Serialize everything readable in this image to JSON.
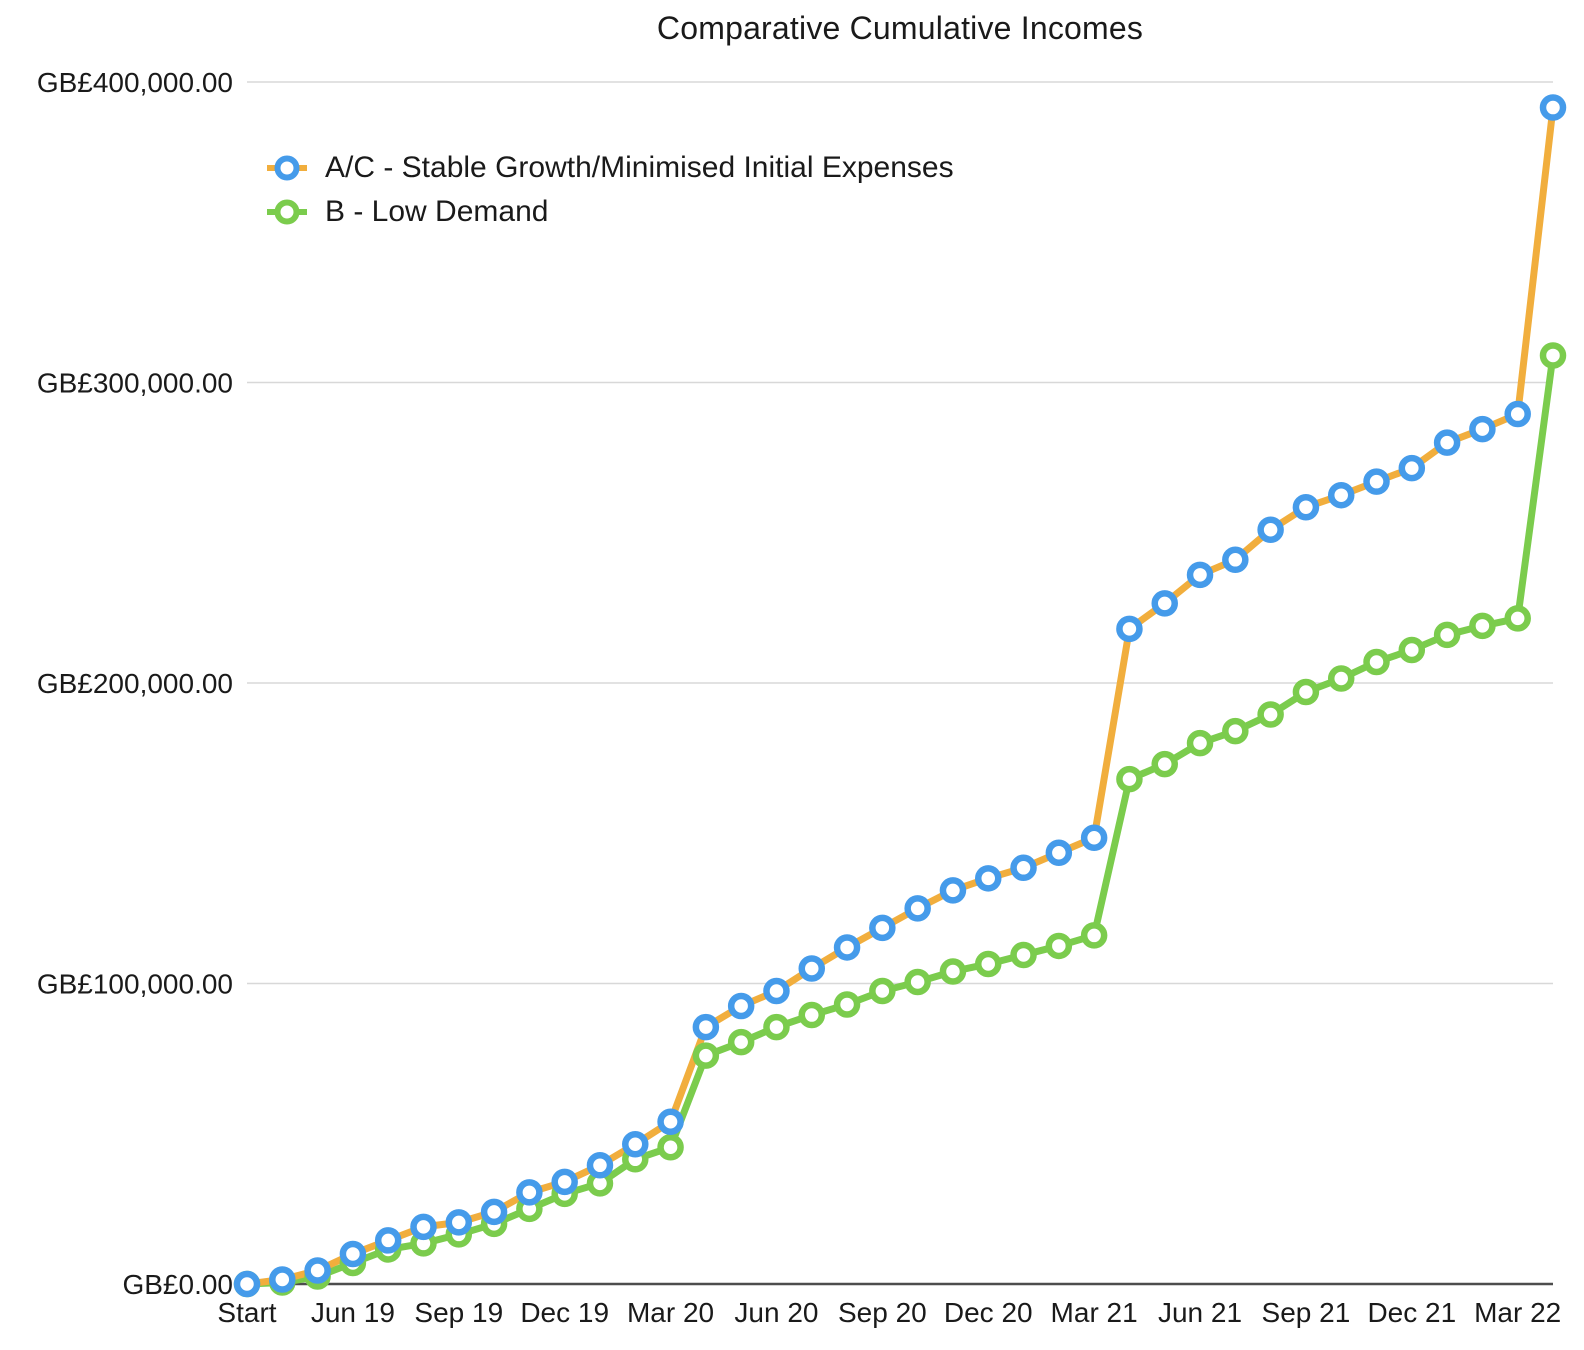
{
  "title": "Comparative Cumulative Incomes",
  "colors": {
    "series_a_line": "#F1AE3D",
    "series_a_marker": "#459BEA",
    "series_b_line": "#7BCC4D",
    "series_b_marker": "#7BCC4D",
    "gridline": "#D8D8D8",
    "zero_axis": "#4D4D4D",
    "text": "#1A1A1A"
  },
  "chart_data": {
    "type": "line",
    "title": "Comparative Cumulative Incomes",
    "currency_prefix": "GB£",
    "grid": "horizontal gridlines only",
    "legend_position": "top-left inside plot",
    "marker_style": "open circle (white fill, colored ring)",
    "ylim": [
      0,
      400000
    ],
    "y_tick_values": [
      0,
      100000,
      200000,
      300000,
      400000
    ],
    "y_tick_labels": [
      "GB£0.00",
      "GB£100,000.00",
      "GB£200,000.00",
      "GB£300,000.00",
      "GB£400,000.00"
    ],
    "x_tick_labels": [
      "Start",
      "Jun 19",
      "Sep 19",
      "Dec 19",
      "Mar 20",
      "Jun 20",
      "Sep 20",
      "Dec 20",
      "Mar 21",
      "Jun 21",
      "Sep 21",
      "Dec 21",
      "Mar 22"
    ],
    "x_tick_every_n_points": 3,
    "points_per_series": 38,
    "series": [
      {
        "name": "A/C - Stable Growth/Minimised Initial Expenses",
        "line_color": "#F1AE3D",
        "marker_color": "#459BEA",
        "values": [
          0,
          1500,
          4500,
          10000,
          14500,
          19000,
          20500,
          24000,
          30500,
          34000,
          39500,
          46500,
          54000,
          85500,
          92500,
          97500,
          105000,
          112000,
          118500,
          125000,
          131000,
          135000,
          138500,
          143500,
          148500,
          218000,
          226500,
          236000,
          241000,
          251000,
          258500,
          262500,
          267000,
          271500,
          280000,
          284500,
          289500,
          391500
        ]
      },
      {
        "name": "B - Low Demand",
        "line_color": "#7BCC4D",
        "marker_color": "#7BCC4D",
        "values": [
          0,
          500,
          2500,
          7000,
          11500,
          13500,
          16500,
          20000,
          25000,
          30000,
          33500,
          41500,
          45500,
          76000,
          80500,
          85500,
          89500,
          93000,
          97500,
          100500,
          104000,
          106500,
          109500,
          112500,
          116000,
          168000,
          173000,
          180000,
          184000,
          189500,
          197000,
          201500,
          207000,
          211000,
          216000,
          219000,
          221500,
          309000
        ]
      }
    ]
  }
}
